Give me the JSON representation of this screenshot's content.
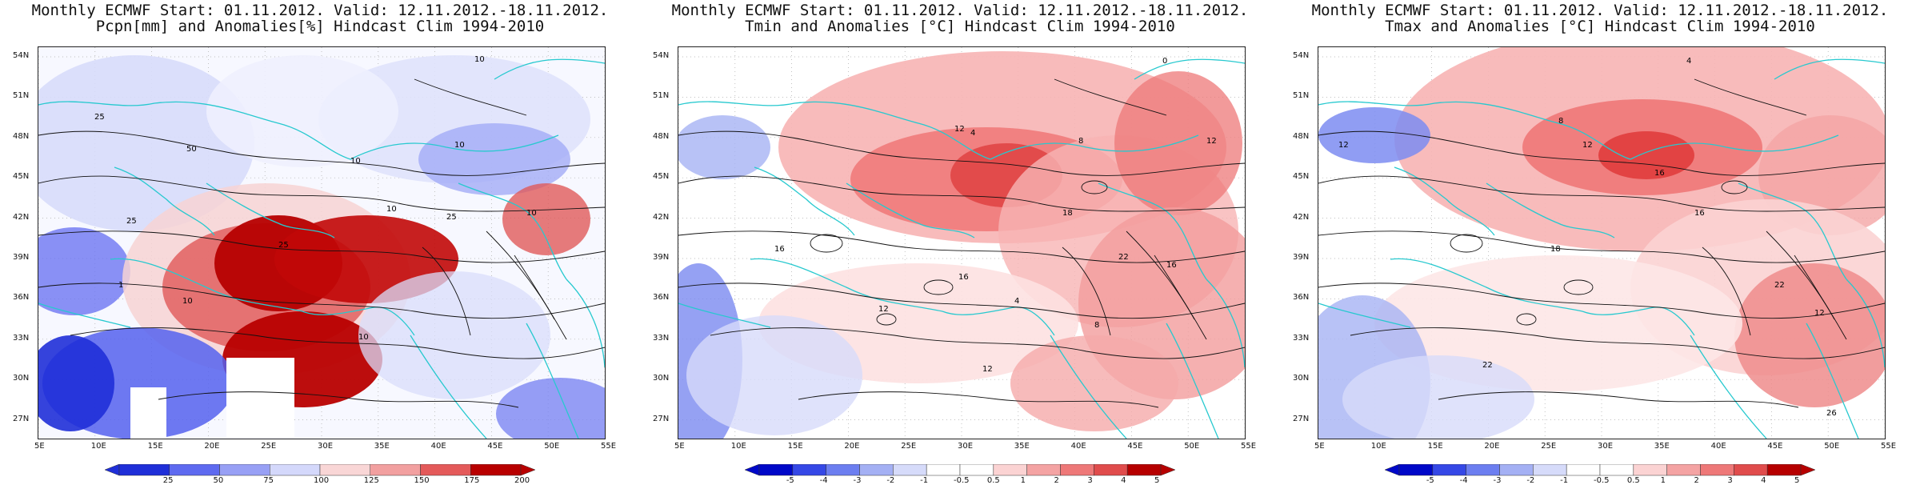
{
  "panels": [
    {
      "title_line1": "Monthly ECMWF Start: 01.11.2012. Valid: 12.11.2012.-18.11.2012.",
      "title_line2": "Pcpn[mm] and Anomalies[%] Hindcast Clim 1994-2010",
      "colorbar_labels": [
        "25",
        "50",
        "75",
        "100",
        "125",
        "150",
        "175",
        "200"
      ],
      "colors": [
        "#1f2fd8",
        "#5e6af0",
        "#98a0f5",
        "#d4d8fb",
        "#f9d6d6",
        "#f2a0a0",
        "#e45a5a",
        "#b80000"
      ],
      "contour_labels": [
        "10",
        "25",
        "50",
        "10",
        "10",
        "25",
        "10",
        "1",
        "10",
        "10",
        "25",
        "25",
        "10"
      ]
    },
    {
      "title_line1": "Monthly ECMWF Start: 01.11.2012. Valid: 12.11.2012.-18.11.2012.",
      "title_line2": "Tmin and Anomalies [°C] Hindcast Clim 1994-2010",
      "colorbar_labels": [
        "-5",
        "-4",
        "-3",
        "-2",
        "-1",
        "-0.5",
        "0.5",
        "1",
        "2",
        "3",
        "4",
        "5"
      ],
      "colors": [
        "#0008c8",
        "#3548e6",
        "#6c7ef0",
        "#a4b0f4",
        "#d6dbfa",
        "#ffffff",
        "#ffffff",
        "#fbd3d3",
        "#f4a3a3",
        "#ee7878",
        "#e04c4c",
        "#b60000"
      ],
      "contour_labels": [
        "0",
        "4",
        "12",
        "8",
        "16",
        "18",
        "16",
        "12",
        "4",
        "8",
        "12",
        "22",
        "16",
        "12"
      ]
    },
    {
      "title_line1": "Monthly ECMWF Start: 01.11.2012. Valid: 12.11.2012.-18.11.2012.",
      "title_line2": "Tmax and Anomalies [°C] Hindcast Clim 1994-2010",
      "colorbar_labels": [
        "-5",
        "-4",
        "-3",
        "-2",
        "-1",
        "-0.5",
        "0.5",
        "1",
        "2",
        "3",
        "4",
        "5"
      ],
      "colors": [
        "#0008c8",
        "#3548e6",
        "#6c7ef0",
        "#a4b0f4",
        "#d6dbfa",
        "#ffffff",
        "#ffffff",
        "#fbd3d3",
        "#f4a3a3",
        "#ee7878",
        "#e04c4c",
        "#b60000"
      ],
      "contour_labels": [
        "4",
        "8",
        "12",
        "16",
        "18",
        "22",
        "26",
        "12",
        "16",
        "22",
        "12"
      ]
    }
  ],
  "lat_labels": [
    "54N",
    "51N",
    "48N",
    "45N",
    "42N",
    "39N",
    "36N",
    "33N",
    "30N",
    "27N"
  ],
  "lon_labels": [
    "5E",
    "10E",
    "15E",
    "20E",
    "25E",
    "30E",
    "35E",
    "40E",
    "45E",
    "50E",
    "55E"
  ],
  "style": {
    "coast_color": "#27c9cf",
    "frame_color": "#222222",
    "contour_color": "#111111"
  }
}
